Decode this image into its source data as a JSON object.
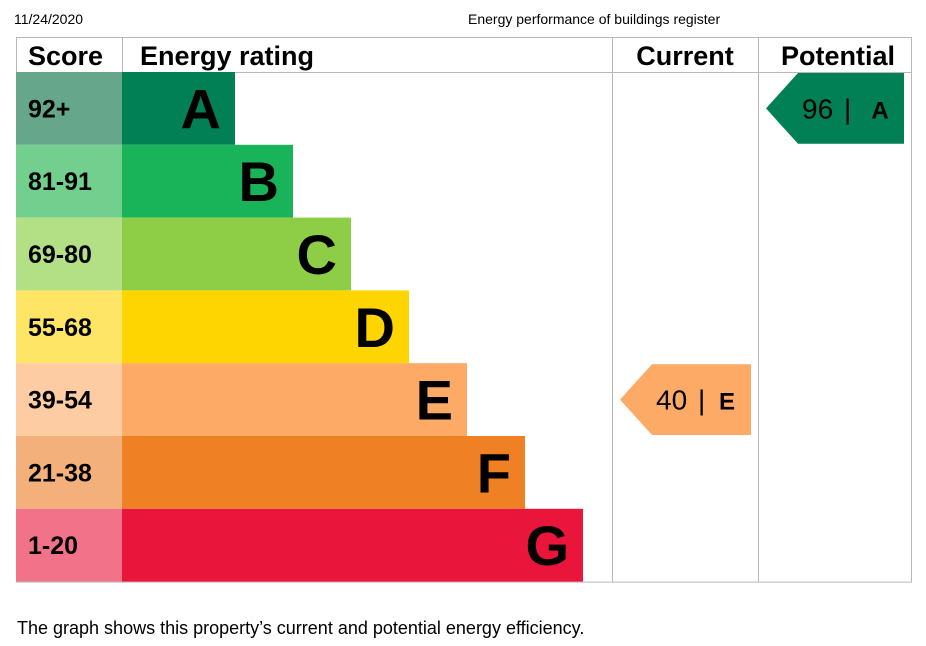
{
  "header": {
    "date": "11/24/2020",
    "title": "Energy performance of buildings register"
  },
  "table": {
    "col_score": "Score",
    "col_rating": "Energy rating",
    "col_current": "Current",
    "col_potential": "Potential"
  },
  "chart_data": {
    "type": "bar",
    "categories": [
      "A",
      "B",
      "C",
      "D",
      "E",
      "F",
      "G"
    ],
    "score_ranges": [
      "92+",
      "81-91",
      "69-80",
      "55-68",
      "39-54",
      "21-38",
      "1-20"
    ],
    "band_colors": [
      "#008054",
      "#19b459",
      "#8dce46",
      "#ffd500",
      "#fcaa65",
      "#ef8023",
      "#e9153b"
    ],
    "score_colors": [
      "#66a68b",
      "#73cf8e",
      "#b3df85",
      "#ffe566",
      "#fdcca3",
      "#f4b07b",
      "#f27289"
    ],
    "current": {
      "score": "40",
      "rating": "E",
      "color": "#fcaa65"
    },
    "potential": {
      "score": "96",
      "rating": "A",
      "color": "#008054"
    }
  },
  "caption": "The graph shows this property’s current and potential energy efficiency."
}
